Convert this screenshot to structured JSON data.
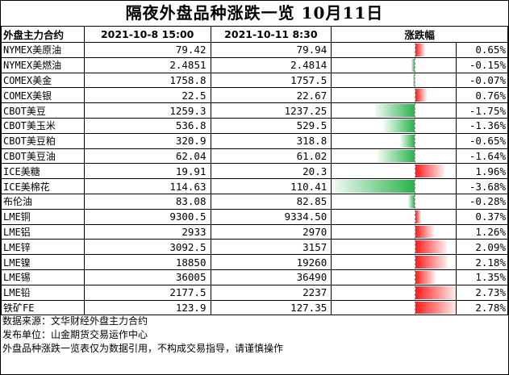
{
  "title": "隔夜外盘品种涨跌一览 10月11日",
  "headers": {
    "name": "外盘主力合约",
    "date1": "2021-10-8 15:00",
    "date2": "2021-10-11 8:30",
    "change": "涨跌幅"
  },
  "rows": [
    {
      "name": "NYMEX美原油",
      "price1": "79.42",
      "price2": "79.94",
      "pct": "0.65%",
      "value": 0.65
    },
    {
      "name": "NYMEX美燃油",
      "price1": "2.4851",
      "price2": "2.4814",
      "pct": "-0.15%",
      "value": -0.15
    },
    {
      "name": "COMEX美金",
      "price1": "1758.8",
      "price2": "1757.5",
      "pct": "-0.07%",
      "value": -0.07
    },
    {
      "name": "COMEX美银",
      "price1": "22.5",
      "price2": "22.67",
      "pct": "0.76%",
      "value": 0.76
    },
    {
      "name": "CBOT美豆",
      "price1": "1259.3",
      "price2": "1237.25",
      "pct": "-1.75%",
      "value": -1.75
    },
    {
      "name": "CBOT美玉米",
      "price1": "536.8",
      "price2": "529.5",
      "pct": "-1.36%",
      "value": -1.36
    },
    {
      "name": "CBOT美豆粕",
      "price1": "320.9",
      "price2": "318.8",
      "pct": "-0.65%",
      "value": -0.65
    },
    {
      "name": "CBOT美豆油",
      "price1": "62.04",
      "price2": "61.02",
      "pct": "-1.64%",
      "value": -1.64
    },
    {
      "name": "ICE美糖",
      "price1": "19.91",
      "price2": "20.3",
      "pct": "1.96%",
      "value": 1.96
    },
    {
      "name": "ICE美棉花",
      "price1": "114.63",
      "price2": "110.41",
      "pct": "-3.68%",
      "value": -3.68
    },
    {
      "name": "布伦油",
      "price1": "83.08",
      "price2": "82.85",
      "pct": "-0.28%",
      "value": -0.28
    },
    {
      "name": "LME铜",
      "price1": "9300.5",
      "price2": "9334.50",
      "pct": "0.37%",
      "value": 0.37
    },
    {
      "name": "LME铝",
      "price1": "2933",
      "price2": "2970",
      "pct": "1.26%",
      "value": 1.26
    },
    {
      "name": "LME锌",
      "price1": "3092.5",
      "price2": "3157",
      "pct": "2.09%",
      "value": 2.09
    },
    {
      "name": "LME镍",
      "price1": "18850",
      "price2": "19260",
      "pct": "2.18%",
      "value": 2.18
    },
    {
      "name": "LME锡",
      "price1": "36005",
      "price2": "36490",
      "pct": "1.35%",
      "value": 1.35
    },
    {
      "name": "LME铅",
      "price1": "2177.5",
      "price2": "2237",
      "pct": "2.73%",
      "value": 2.73
    },
    {
      "name": "铁矿FE",
      "price1": "123.9",
      "price2": "127.35",
      "pct": "2.78%",
      "value": 2.78
    }
  ],
  "footer": [
    "数据来源：文华财经外盘主力合约",
    "发布单位：山金期货交易运作中心",
    "外盘品种涨跌一览表仅为数据引用，不构成交易指导，请谨慎操作"
  ],
  "colors": {
    "negative": "#27b34b",
    "positive": "#ff1a1a"
  }
}
